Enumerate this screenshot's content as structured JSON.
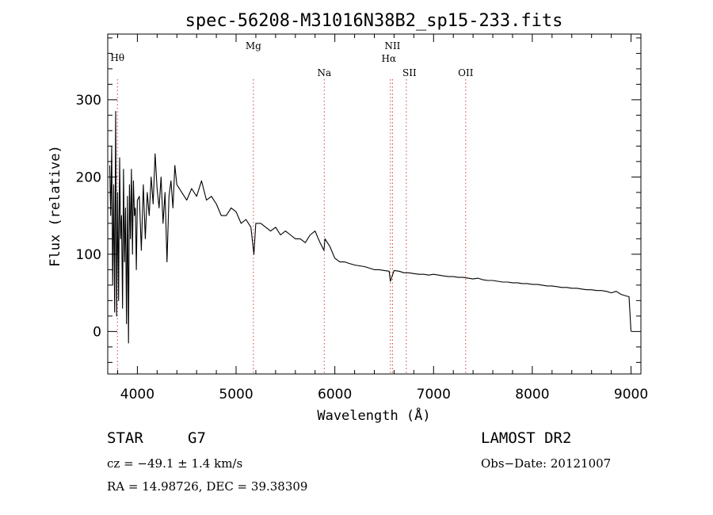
{
  "chart_data": {
    "type": "line",
    "title": "spec-56208-M31016N38B2_sp15-233.fits",
    "xlabel": "Wavelength (Å)",
    "ylabel": "Flux (relative)",
    "xlim": [
      3700,
      9100
    ],
    "ylim": [
      -55,
      385
    ],
    "x_ticks": [
      4000,
      5000,
      6000,
      7000,
      8000,
      9000
    ],
    "y_ticks": [
      0,
      100,
      200,
      300
    ],
    "grid": false,
    "series": [
      {
        "x": [
          3720,
          3730,
          3740,
          3750,
          3760,
          3770,
          3780,
          3790,
          3800,
          3810,
          3820,
          3830,
          3840,
          3850,
          3860,
          3870,
          3880,
          3890,
          3900,
          3910,
          3920,
          3930,
          3940,
          3950,
          3960,
          3970,
          3980,
          3990,
          4000,
          4020,
          4040,
          4060,
          4080,
          4100,
          4120,
          4140,
          4160,
          4180,
          4200,
          4220,
          4240,
          4260,
          4280,
          4300,
          4320,
          4340,
          4360,
          4380,
          4400,
          4450,
          4500,
          4550,
          4600,
          4650,
          4700,
          4750,
          4800,
          4850,
          4900,
          4950,
          5000,
          5050,
          5100,
          5150,
          5180,
          5200,
          5250,
          5300,
          5350,
          5400,
          5450,
          5500,
          5550,
          5600,
          5650,
          5700,
          5750,
          5800,
          5850,
          5890,
          5900,
          5950,
          6000,
          6050,
          6100,
          6150,
          6200,
          6250,
          6300,
          6350,
          6400,
          6450,
          6500,
          6550,
          6563,
          6600,
          6650,
          6700,
          6750,
          6800,
          6850,
          6900,
          6950,
          7000,
          7050,
          7100,
          7150,
          7200,
          7250,
          7300,
          7350,
          7400,
          7450,
          7500,
          7550,
          7600,
          7650,
          7700,
          7750,
          7800,
          7850,
          7900,
          7950,
          8000,
          8050,
          8100,
          8150,
          8200,
          8250,
          8300,
          8350,
          8400,
          8450,
          8500,
          8550,
          8600,
          8650,
          8700,
          8750,
          8800,
          8850,
          8900,
          8950,
          8980,
          9000
        ],
        "y": [
          215,
          150,
          240,
          60,
          190,
          25,
          285,
          20,
          180,
          40,
          225,
          120,
          150,
          30,
          210,
          90,
          160,
          10,
          175,
          -15,
          190,
          120,
          210,
          100,
          195,
          150,
          160,
          80,
          170,
          175,
          105,
          190,
          120,
          180,
          150,
          200,
          165,
          230,
          185,
          160,
          200,
          140,
          180,
          90,
          175,
          195,
          160,
          215,
          190,
          180,
          170,
          185,
          175,
          195,
          170,
          175,
          165,
          150,
          150,
          160,
          155,
          140,
          145,
          135,
          100,
          140,
          140,
          135,
          130,
          135,
          125,
          130,
          125,
          120,
          120,
          115,
          125,
          130,
          115,
          105,
          120,
          110,
          95,
          90,
          90,
          88,
          86,
          85,
          84,
          82,
          80,
          80,
          79,
          78,
          65,
          79,
          78,
          76,
          76,
          75,
          74,
          74,
          73,
          74,
          73,
          72,
          71,
          71,
          70,
          70,
          69,
          68,
          69,
          67,
          66,
          66,
          65,
          64,
          64,
          63,
          63,
          62,
          62,
          61,
          61,
          60,
          59,
          59,
          58,
          57,
          57,
          56,
          56,
          55,
          54,
          54,
          53,
          53,
          52,
          50,
          52,
          48,
          46,
          45,
          0
        ]
      }
    ],
    "lines": [
      {
        "label": "Hθ",
        "x": 3798
      },
      {
        "label": "Mg",
        "x": 5175
      },
      {
        "label": "Na",
        "x": 5893
      },
      {
        "label": "NII",
        "x": 6584
      },
      {
        "label": "Hα",
        "x": 6563
      },
      {
        "label": "SII",
        "x": 6724
      },
      {
        "label": "OII",
        "x": 7325
      }
    ]
  },
  "footer": {
    "object_class": "STAR",
    "subclass": "G7",
    "redshift": "cz = −49.1 ± 1.4 km/s",
    "coords": "RA =  14.98726, DEC =  39.38309",
    "survey": "LAMOST DR2",
    "obs_date": "Obs−Date: 20121007"
  }
}
